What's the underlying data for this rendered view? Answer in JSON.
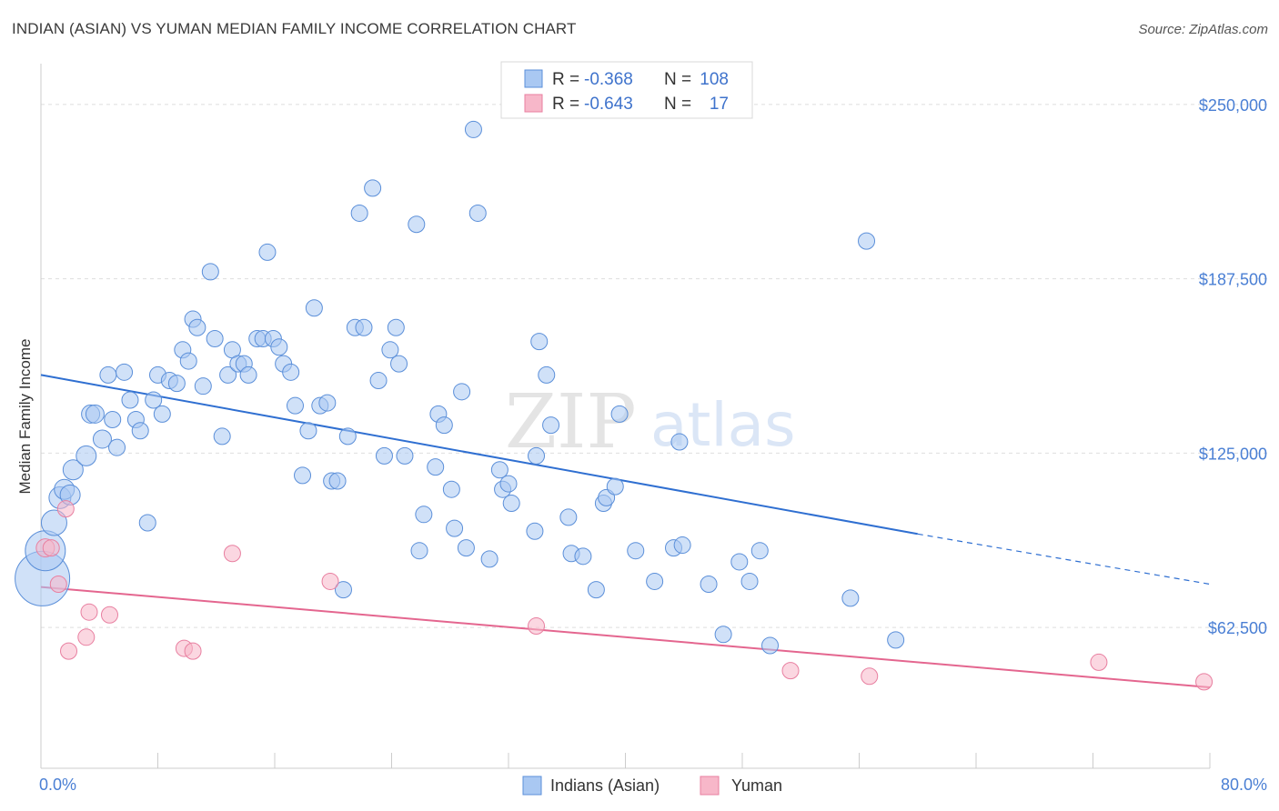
{
  "title": "INDIAN (ASIAN) VS YUMAN MEDIAN FAMILY INCOME CORRELATION CHART",
  "source": "Source: ZipAtlas.com",
  "watermark": {
    "zip": "ZIP",
    "atlas": "atlas"
  },
  "legend": {
    "rows": [
      {
        "r_label": "R = ",
        "r_value": "-0.368",
        "n_label": "N = ",
        "n_value": "108",
        "color": "#a9c8f2"
      },
      {
        "r_label": "R = ",
        "r_value": "-0.643",
        "n_label": "N = ",
        "n_value": "17",
        "color": "#f7b7c9"
      }
    ]
  },
  "bottom_legend": [
    {
      "label": "Indians (Asian)",
      "color": "#a9c8f2"
    },
    {
      "label": "Yuman",
      "color": "#f7b7c9"
    }
  ],
  "colors": {
    "blue_fill": "#a9c8f2",
    "blue_stroke": "#5b8fd9",
    "blue_line": "#2f6fd1",
    "pink_fill": "#f7b7c9",
    "pink_stroke": "#e87fa0",
    "pink_line": "#e4668f",
    "axis_label": "#4a7fd4"
  },
  "chart_data": {
    "type": "scatter",
    "xlabel": "",
    "ylabel": "Median Family Income",
    "xlim": [
      0,
      80
    ],
    "ylim": [
      12000,
      262000
    ],
    "y_ticks": [
      62500,
      125000,
      187500,
      250000
    ],
    "y_tick_labels": [
      "$62,500",
      "$125,000",
      "$187,500",
      "$250,000"
    ],
    "x_tick_labels": [
      "0.0%",
      "80.0%"
    ],
    "grid": true,
    "legend_position": "top-center",
    "series": [
      {
        "name": "Indians (Asian)",
        "trend": {
          "x": [
            0,
            60
          ],
          "y": [
            153000,
            96000
          ],
          "dashed_to": [
            80,
            78000
          ]
        },
        "points": [
          [
            0.1,
            80000,
            30
          ],
          [
            0.3,
            90000,
            22
          ],
          [
            0.9,
            100000,
            14
          ],
          [
            1.3,
            109000,
            12
          ],
          [
            1.6,
            112000,
            11
          ],
          [
            2.0,
            110000,
            11
          ],
          [
            2.2,
            119000,
            11
          ],
          [
            3.1,
            124000,
            11
          ],
          [
            3.4,
            139000,
            10
          ],
          [
            3.7,
            139000,
            10
          ],
          [
            4.2,
            130000,
            10
          ],
          [
            4.6,
            153000,
            9
          ],
          [
            4.9,
            137000,
            9
          ],
          [
            5.2,
            127000,
            9
          ],
          [
            5.7,
            154000,
            9
          ],
          [
            6.1,
            144000,
            9
          ],
          [
            6.5,
            137000,
            9
          ],
          [
            6.8,
            133000,
            9
          ],
          [
            7.3,
            100000,
            9
          ],
          [
            7.7,
            144000,
            9
          ],
          [
            8.0,
            153000,
            9
          ],
          [
            8.3,
            139000,
            9
          ],
          [
            8.8,
            151000,
            9
          ],
          [
            9.3,
            150000,
            9
          ],
          [
            9.7,
            162000,
            9
          ],
          [
            10.1,
            158000,
            9
          ],
          [
            10.4,
            173000,
            9
          ],
          [
            10.7,
            170000,
            9
          ],
          [
            11.1,
            149000,
            9
          ],
          [
            11.6,
            190000,
            9
          ],
          [
            11.9,
            166000,
            9
          ],
          [
            12.4,
            131000,
            9
          ],
          [
            12.8,
            153000,
            9
          ],
          [
            13.1,
            162000,
            9
          ],
          [
            13.5,
            157000,
            9
          ],
          [
            13.9,
            157000,
            9
          ],
          [
            14.2,
            153000,
            9
          ],
          [
            14.8,
            166000,
            9
          ],
          [
            15.2,
            166000,
            9
          ],
          [
            15.5,
            197000,
            9
          ],
          [
            15.9,
            166000,
            9
          ],
          [
            16.3,
            163000,
            9
          ],
          [
            16.6,
            157000,
            9
          ],
          [
            17.1,
            154000,
            9
          ],
          [
            17.4,
            142000,
            9
          ],
          [
            17.9,
            117000,
            9
          ],
          [
            18.3,
            133000,
            9
          ],
          [
            18.7,
            177000,
            9
          ],
          [
            19.1,
            142000,
            9
          ],
          [
            19.6,
            143000,
            9
          ],
          [
            19.9,
            115000,
            9
          ],
          [
            20.3,
            115000,
            9
          ],
          [
            20.7,
            76000,
            9
          ],
          [
            21.0,
            131000,
            9
          ],
          [
            21.5,
            170000,
            9
          ],
          [
            21.8,
            211000,
            9
          ],
          [
            22.1,
            170000,
            9
          ],
          [
            22.7,
            220000,
            9
          ],
          [
            23.1,
            151000,
            9
          ],
          [
            23.5,
            124000,
            9
          ],
          [
            23.9,
            162000,
            9
          ],
          [
            24.3,
            170000,
            9
          ],
          [
            24.5,
            157000,
            9
          ],
          [
            24.9,
            124000,
            9
          ],
          [
            25.7,
            207000,
            9
          ],
          [
            25.9,
            90000,
            9
          ],
          [
            26.2,
            103000,
            9
          ],
          [
            27.0,
            120000,
            9
          ],
          [
            27.2,
            139000,
            9
          ],
          [
            27.6,
            135000,
            9
          ],
          [
            28.1,
            112000,
            9
          ],
          [
            28.3,
            98000,
            9
          ],
          [
            28.8,
            147000,
            9
          ],
          [
            29.1,
            91000,
            9
          ],
          [
            29.6,
            241000,
            9
          ],
          [
            29.9,
            211000,
            9
          ],
          [
            30.7,
            87000,
            9
          ],
          [
            31.4,
            119000,
            9
          ],
          [
            31.6,
            112000,
            9
          ],
          [
            32.0,
            114000,
            9
          ],
          [
            32.2,
            107000,
            9
          ],
          [
            33.8,
            97000,
            9
          ],
          [
            33.9,
            124000,
            9
          ],
          [
            34.1,
            165000,
            9
          ],
          [
            34.6,
            153000,
            9
          ],
          [
            34.9,
            135000,
            9
          ],
          [
            36.1,
            102000,
            9
          ],
          [
            36.3,
            89000,
            9
          ],
          [
            37.1,
            88000,
            9
          ],
          [
            38.0,
            76000,
            9
          ],
          [
            38.5,
            107000,
            9
          ],
          [
            38.7,
            109000,
            9
          ],
          [
            39.3,
            113000,
            9
          ],
          [
            39.6,
            139000,
            9
          ],
          [
            40.7,
            90000,
            9
          ],
          [
            42.0,
            79000,
            9
          ],
          [
            43.3,
            91000,
            9
          ],
          [
            43.7,
            129000,
            9
          ],
          [
            43.9,
            92000,
            9
          ],
          [
            45.7,
            78000,
            9
          ],
          [
            46.7,
            60000,
            9
          ],
          [
            47.8,
            86000,
            9
          ],
          [
            48.5,
            79000,
            9
          ],
          [
            49.2,
            90000,
            9
          ],
          [
            49.9,
            56000,
            9
          ],
          [
            56.5,
            201000,
            9
          ],
          [
            55.4,
            73000,
            9
          ],
          [
            58.5,
            58000,
            9
          ]
        ]
      },
      {
        "name": "Yuman",
        "trend": {
          "x": [
            0,
            80
          ],
          "y": [
            77000,
            41000
          ]
        },
        "points": [
          [
            0.3,
            91000,
            10
          ],
          [
            0.7,
            91000,
            9
          ],
          [
            1.2,
            78000,
            9
          ],
          [
            1.7,
            105000,
            9
          ],
          [
            1.9,
            54000,
            9
          ],
          [
            3.1,
            59000,
            9
          ],
          [
            3.3,
            68000,
            9
          ],
          [
            4.7,
            67000,
            9
          ],
          [
            9.8,
            55000,
            9
          ],
          [
            10.4,
            54000,
            9
          ],
          [
            13.1,
            89000,
            9
          ],
          [
            19.8,
            79000,
            9
          ],
          [
            33.9,
            63000,
            9
          ],
          [
            51.3,
            47000,
            9
          ],
          [
            56.7,
            45000,
            9
          ],
          [
            72.4,
            50000,
            9
          ],
          [
            79.6,
            43000,
            9
          ]
        ]
      }
    ]
  }
}
